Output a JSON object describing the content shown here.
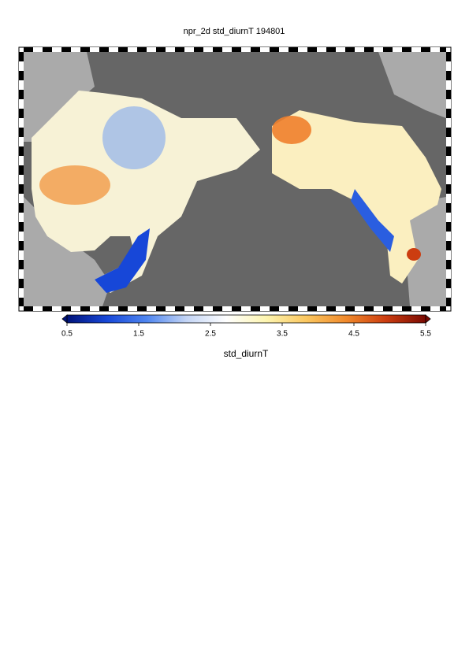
{
  "title": "npr_2d std_diurnT 194801",
  "colorbar": {
    "label": "std_diurnT",
    "lim": [
      0.5,
      5.5
    ],
    "ticks": [
      0.5,
      1.5,
      2.5,
      3.5,
      4.5,
      5.5
    ],
    "colors": [
      "#00137a",
      "#1747d8",
      "#4f86f0",
      "#c4d5f5",
      "#ffffff",
      "#fdf5b0",
      "#fbc760",
      "#f08a2c",
      "#cc3d10",
      "#7a0a02"
    ]
  }
}
